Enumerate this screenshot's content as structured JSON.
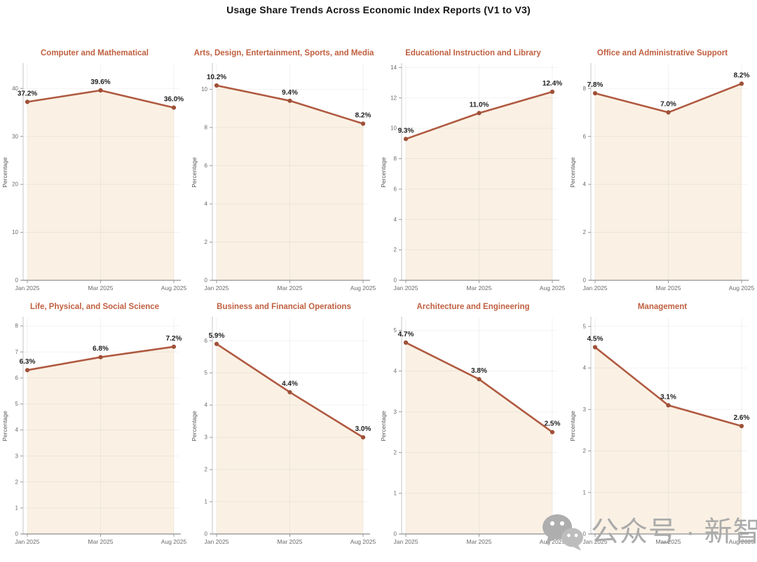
{
  "figure": {
    "title": "Usage Share Trends Across Economic Index Reports (V1 to V3)"
  },
  "watermark": {
    "icon": "wechat-icon",
    "text": "公众号 · 新智元",
    "color": "#ababab"
  },
  "colors": {
    "line": "#b05a41",
    "marker": "#9e5038",
    "area_fill": "#faf1e4",
    "subplot_title": "#c06040",
    "main_title": "#141414",
    "tick_text": "#6b6b6b",
    "axis_label_text": "#555555",
    "data_label_text": "#212121",
    "gridline": "#ececec",
    "left_spine": "#cfcfcf",
    "bottom_spine": "#8f8f8f"
  },
  "chart_data": {
    "type": "area",
    "x_categories": [
      "Jan 2025",
      "Mar 2025",
      "Aug 2025"
    ],
    "ylabel": "Percentage",
    "grid": true,
    "legend": false,
    "charts": [
      {
        "title": "Computer and Mathematical",
        "values": [
          37.2,
          39.6,
          36.0
        ],
        "labels": [
          "37.2%",
          "39.6%",
          "36.0%"
        ],
        "yticks": [
          0,
          10,
          20,
          30,
          40
        ],
        "ymax": 45
      },
      {
        "title": "Arts, Design, Entertainment, Sports, and Media",
        "values": [
          10.2,
          9.4,
          8.2
        ],
        "labels": [
          "10.2%",
          "9.4%",
          "8.2%"
        ],
        "yticks": [
          0,
          2,
          4,
          6,
          8,
          10
        ],
        "ymax": 11.3
      },
      {
        "title": "Educational Instruction and Library",
        "values": [
          9.3,
          11.0,
          12.4
        ],
        "labels": [
          "9.3%",
          "11.0%",
          "12.4%"
        ],
        "yticks": [
          0,
          2,
          4,
          6,
          8,
          10,
          12,
          14
        ],
        "ymax": 14.2
      },
      {
        "title": "Office and Administrative Support",
        "values": [
          7.8,
          7.0,
          8.2
        ],
        "labels": [
          "7.8%",
          "7.0%",
          "8.2%"
        ],
        "yticks": [
          0,
          2,
          4,
          6,
          8
        ],
        "ymax": 9.0
      },
      {
        "title": "Life, Physical, and Social Science",
        "values": [
          6.3,
          6.8,
          7.2
        ],
        "labels": [
          "6.3%",
          "6.8%",
          "7.2%"
        ],
        "yticks": [
          0,
          1,
          2,
          3,
          4,
          5,
          6,
          7,
          8
        ],
        "ymax": 8.3
      },
      {
        "title": "Business and Financial Operations",
        "values": [
          5.9,
          4.4,
          3.0
        ],
        "labels": [
          "5.9%",
          "4.4%",
          "3.0%"
        ],
        "yticks": [
          0,
          1,
          2,
          3,
          4,
          5,
          6
        ],
        "ymax": 6.7
      },
      {
        "title": "Architecture and Engineering",
        "values": [
          4.7,
          3.8,
          2.5
        ],
        "labels": [
          "4.7%",
          "3.8%",
          "2.5%"
        ],
        "yticks": [
          0,
          1,
          2,
          3,
          4,
          5
        ],
        "ymax": 5.3
      },
      {
        "title": "Management",
        "values": [
          4.5,
          3.1,
          2.6
        ],
        "labels": [
          "4.5%",
          "3.1%",
          "2.6%"
        ],
        "yticks": [
          0,
          1,
          2,
          3,
          4,
          5
        ],
        "ymax": 5.2
      }
    ]
  }
}
